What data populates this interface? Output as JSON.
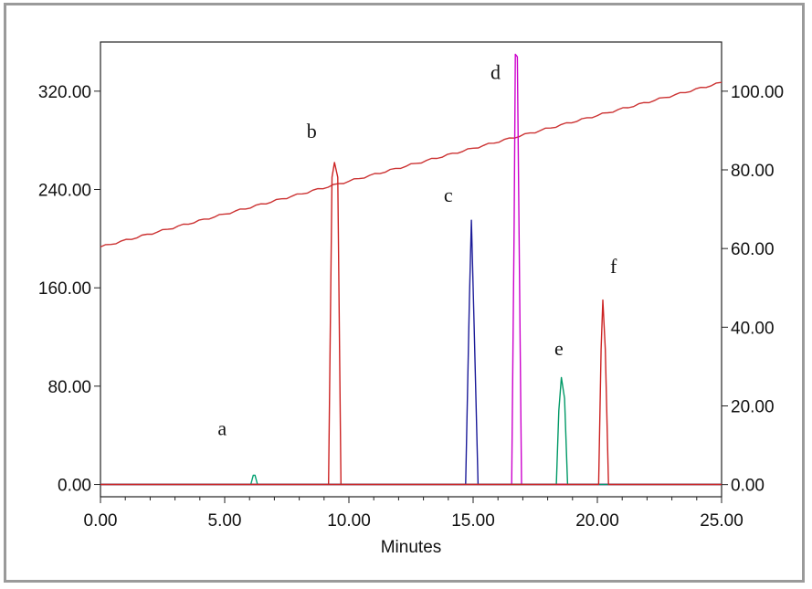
{
  "chart_data": {
    "type": "line",
    "title": "",
    "xlabel": "Minutes",
    "ylabel_left": "",
    "ylabel_right": "",
    "xlim": [
      0,
      25
    ],
    "ylim_left": [
      -10,
      360
    ],
    "ylim_right": [
      -3.1,
      112.5
    ],
    "grid": false,
    "x_ticks": [
      "0.00",
      "5.00",
      "10.00",
      "15.00",
      "20.00",
      "25.00"
    ],
    "y_ticks_left": [
      "0.00",
      "80.00",
      "160.00",
      "240.00",
      "320.00"
    ],
    "y_ticks_right": [
      "0.00",
      "20.00",
      "40.00",
      "60.00",
      "80.00",
      "100.00"
    ],
    "series": [
      {
        "color": "#cc3333",
        "axis": "right",
        "x": [
          0,
          25
        ],
        "values": [
          60.4,
          102.2
        ]
      },
      {
        "color": "#00a070",
        "axis": "left",
        "x": [
          0,
          6.05,
          6.15,
          6.22,
          6.32,
          25
        ],
        "values": [
          0,
          0,
          7.5,
          7.5,
          0,
          0
        ]
      },
      {
        "color": "#cc2222",
        "axis": "left",
        "x": [
          0,
          9.18,
          9.32,
          9.42,
          9.55,
          9.68,
          25
        ],
        "values": [
          0,
          0,
          250,
          262,
          250,
          0,
          0
        ]
      },
      {
        "color": "#1c1c99",
        "axis": "left",
        "x": [
          0,
          14.7,
          14.85,
          14.93,
          15.05,
          15.2,
          25
        ],
        "values": [
          0,
          0,
          150,
          215,
          120,
          0,
          0
        ]
      },
      {
        "color": "#cc00cc",
        "axis": "left",
        "x": [
          0,
          16.55,
          16.65,
          16.7,
          16.78,
          16.95,
          25
        ],
        "values": [
          0,
          0,
          210,
          350,
          348,
          0,
          0
        ]
      },
      {
        "color": "#009966",
        "axis": "left",
        "x": [
          0,
          18.35,
          18.45,
          18.55,
          18.68,
          18.8,
          25
        ],
        "values": [
          0,
          0,
          60,
          87,
          70,
          0,
          0
        ]
      },
      {
        "color": "#cc2222",
        "axis": "left",
        "x": [
          0,
          20.05,
          20.15,
          20.22,
          20.32,
          20.45,
          25
        ],
        "values": [
          0,
          0,
          110,
          150,
          110,
          0,
          0
        ]
      }
    ],
    "annotations": [
      {
        "text": "a",
        "x": 4.9,
        "y": 40
      },
      {
        "text": "b",
        "x": 8.5,
        "y": 282
      },
      {
        "text": "c",
        "x": 14.0,
        "y": 230
      },
      {
        "text": "d",
        "x": 15.9,
        "y": 330
      },
      {
        "text": "e",
        "x": 18.45,
        "y": 105
      },
      {
        "text": "f",
        "x": 20.65,
        "y": 172
      }
    ]
  }
}
